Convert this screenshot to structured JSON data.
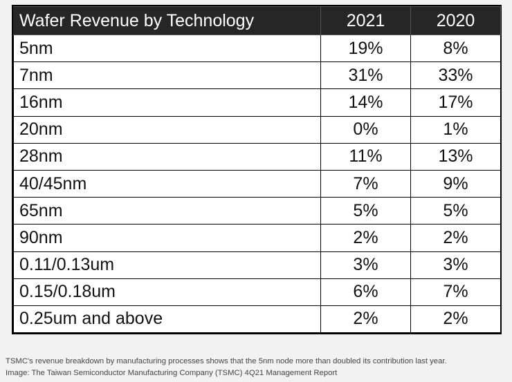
{
  "table": {
    "header": {
      "label": "Wafer Revenue by Technology",
      "year_a": "2021",
      "year_b": "2020"
    },
    "rows": [
      {
        "tech": "5nm",
        "y2021": "19%",
        "y2020": "8%"
      },
      {
        "tech": "7nm",
        "y2021": "31%",
        "y2020": "33%"
      },
      {
        "tech": "16nm",
        "y2021": "14%",
        "y2020": "17%"
      },
      {
        "tech": "20nm",
        "y2021": "0%",
        "y2020": "1%"
      },
      {
        "tech": "28nm",
        "y2021": "11%",
        "y2020": "13%"
      },
      {
        "tech": "40/45nm",
        "y2021": "7%",
        "y2020": "9%"
      },
      {
        "tech": "65nm",
        "y2021": "5%",
        "y2020": "5%"
      },
      {
        "tech": "90nm",
        "y2021": "2%",
        "y2020": "2%"
      },
      {
        "tech": "0.11/0.13um",
        "y2021": "3%",
        "y2020": "3%"
      },
      {
        "tech": "0.15/0.18um",
        "y2021": "6%",
        "y2020": "7%"
      },
      {
        "tech": "0.25um and above",
        "y2021": "2%",
        "y2020": "2%"
      }
    ]
  },
  "caption": {
    "line1": "TSMC's revenue breakdown by manufacturing processes shows that the 5nm node more than doubled its contribution last year.",
    "line2": "Image: The Taiwan Semiconductor Manufacturing Company (TSMC) 4Q21 Management Report"
  },
  "colors": {
    "header_bg": "#262626",
    "header_text": "#ffffff",
    "page_bg": "#f2f2f2",
    "caption_text": "#444444"
  }
}
